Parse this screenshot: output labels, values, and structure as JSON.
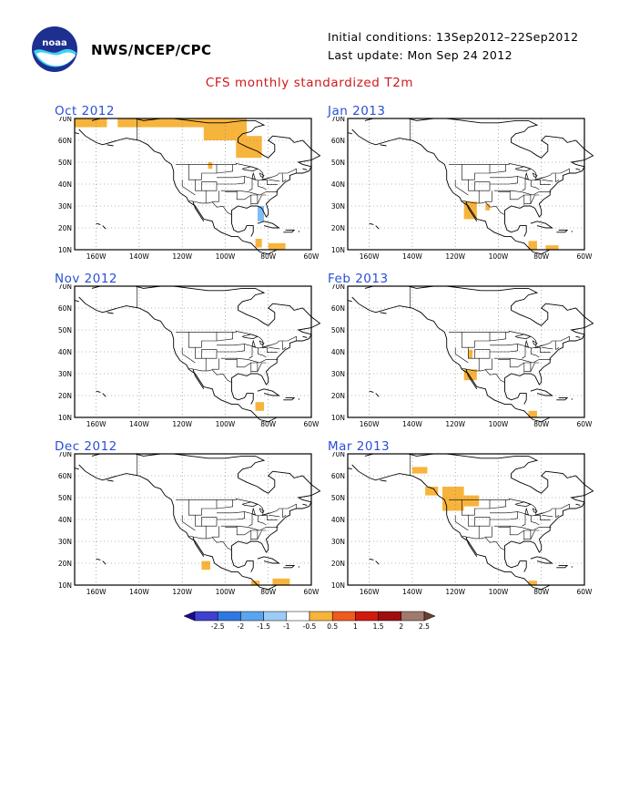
{
  "header": {
    "agency": "NWS/NCEP/CPC",
    "initial_conditions": "Initial conditions: 13Sep2012–22Sep2012",
    "last_update": "Last update: Mon Sep 24 2012",
    "title": "CFS monthly standardized T2m",
    "logo_text": "noaa"
  },
  "map_axes": {
    "lat_labels": [
      "70N",
      "60N",
      "50N",
      "40N",
      "30N",
      "20N",
      "10N"
    ],
    "lon_labels": [
      "160W",
      "140W",
      "120W",
      "100W",
      "80W",
      "60W"
    ]
  },
  "panels": [
    {
      "title": "Oct 2012",
      "anomalies": [
        {
          "color": "#f7b43c",
          "lat": [
            66,
            70
          ],
          "lon": [
            -170,
            -155
          ]
        },
        {
          "color": "#f7b43c",
          "lat": [
            66,
            70
          ],
          "lon": [
            -150,
            -100
          ]
        },
        {
          "color": "#f7b43c",
          "lat": [
            60,
            70
          ],
          "lon": [
            -110,
            -90
          ]
        },
        {
          "color": "#f7b43c",
          "lat": [
            52,
            62
          ],
          "lon": [
            -95,
            -83
          ]
        },
        {
          "color": "#f7b43c",
          "lat": [
            47,
            50
          ],
          "lon": [
            -108,
            -106
          ]
        },
        {
          "color": "#f7b43c",
          "lat": [
            10,
            13
          ],
          "lon": [
            -80,
            -72
          ]
        },
        {
          "color": "#f7b43c",
          "lat": [
            11,
            15
          ],
          "lon": [
            -86,
            -83
          ]
        },
        {
          "color": "#7fbdf4",
          "lat": [
            23,
            30
          ],
          "lon": [
            -85,
            -82
          ]
        }
      ]
    },
    {
      "title": "Jan 2013",
      "anomalies": [
        {
          "color": "#f7b43c",
          "lat": [
            24,
            32
          ],
          "lon": [
            -116,
            -110
          ]
        },
        {
          "color": "#f7b43c",
          "lat": [
            28,
            31
          ],
          "lon": [
            -106,
            -104
          ]
        },
        {
          "color": "#f7b43c",
          "lat": [
            10,
            14
          ],
          "lon": [
            -86,
            -82
          ]
        },
        {
          "color": "#f7b43c",
          "lat": [
            10,
            12
          ],
          "lon": [
            -78,
            -72
          ]
        }
      ]
    },
    {
      "title": "Nov 2012",
      "anomalies": [
        {
          "color": "#f7b43c",
          "lat": [
            13,
            17
          ],
          "lon": [
            -86,
            -82
          ]
        }
      ]
    },
    {
      "title": "Feb 2013",
      "anomalies": [
        {
          "color": "#f7b43c",
          "lat": [
            27,
            32
          ],
          "lon": [
            -116,
            -110
          ]
        },
        {
          "color": "#f7b43c",
          "lat": [
            37,
            41
          ],
          "lon": [
            -114,
            -112
          ]
        },
        {
          "color": "#f7b43c",
          "lat": [
            10,
            13
          ],
          "lon": [
            -86,
            -82
          ]
        }
      ]
    },
    {
      "title": "Dec 2012",
      "anomalies": [
        {
          "color": "#f7b43c",
          "lat": [
            17,
            21
          ],
          "lon": [
            -111,
            -107
          ]
        },
        {
          "color": "#f7b43c",
          "lat": [
            10,
            13
          ],
          "lon": [
            -78,
            -70
          ]
        },
        {
          "color": "#f7b43c",
          "lat": [
            10,
            12
          ],
          "lon": [
            -88,
            -84
          ]
        }
      ]
    },
    {
      "title": "Mar 2013",
      "anomalies": [
        {
          "color": "#f7b43c",
          "lat": [
            51,
            55
          ],
          "lon": [
            -134,
            -128
          ]
        },
        {
          "color": "#f7b43c",
          "lat": [
            44,
            55
          ],
          "lon": [
            -126,
            -116
          ]
        },
        {
          "color": "#f7b43c",
          "lat": [
            46,
            51
          ],
          "lon": [
            -118,
            -109
          ]
        },
        {
          "color": "#f7b43c",
          "lat": [
            61,
            64
          ],
          "lon": [
            -140,
            -133
          ]
        },
        {
          "color": "#f7b43c",
          "lat": [
            10,
            12
          ],
          "lon": [
            -86,
            -82
          ]
        }
      ]
    }
  ],
  "legend": {
    "ticks": [
      "-2.5",
      "-2",
      "-1.5",
      "-1",
      "-0.5",
      "0.5",
      "1",
      "1.5",
      "2",
      "2.5"
    ],
    "colors": [
      "#1a0c8f",
      "#3f3fd0",
      "#2f78e0",
      "#5aa5f0",
      "#9ccbf6",
      "#ffffff",
      "#f7b43c",
      "#f05a1c",
      "#d01a10",
      "#9e0e0e",
      "#a07a6c",
      "#6b4034"
    ]
  }
}
